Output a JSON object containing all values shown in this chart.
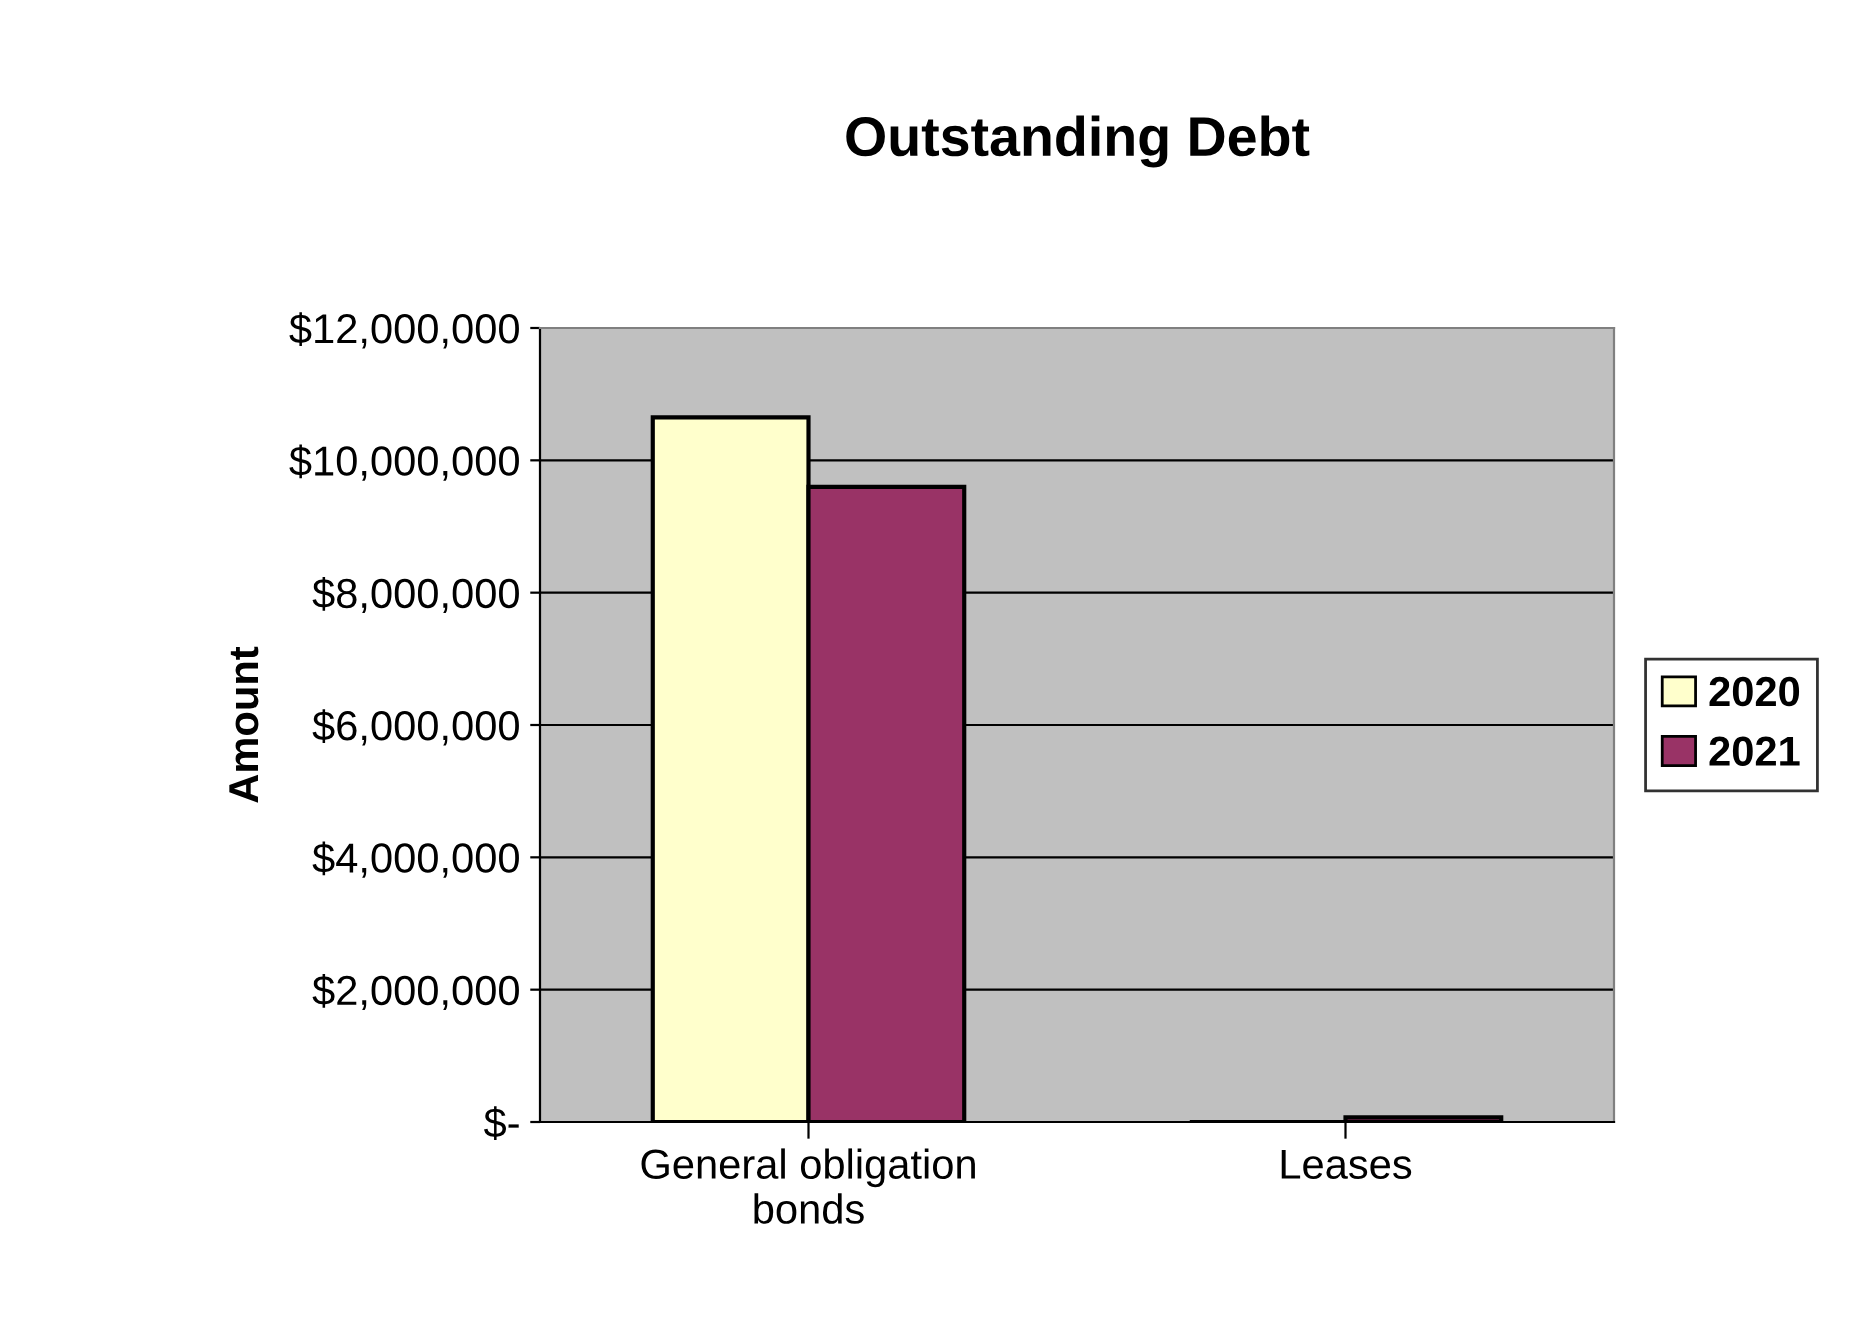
{
  "chart_data": {
    "type": "bar",
    "title": "Outstanding Debt",
    "ylabel": "Amount",
    "categories": [
      "General obligation\nbonds",
      "Leases"
    ],
    "series": [
      {
        "name": "2020",
        "color": "#ffffcc",
        "values": [
          10650000,
          null
        ]
      },
      {
        "name": "2021",
        "color": "#993366",
        "values": [
          9600000,
          70000
        ]
      }
    ],
    "ylim": [
      0,
      12000000
    ],
    "yticks": [
      {
        "value": 0,
        "label": "$-"
      },
      {
        "value": 2000000,
        "label": "$2,000,000"
      },
      {
        "value": 4000000,
        "label": "$4,000,000"
      },
      {
        "value": 6000000,
        "label": "$6,000,000"
      },
      {
        "value": 8000000,
        "label": "$8,000,000"
      },
      {
        "value": 10000000,
        "label": "$10,000,000"
      },
      {
        "value": 12000000,
        "label": "$12,000,000"
      }
    ],
    "grid": "y",
    "legend": "right"
  }
}
